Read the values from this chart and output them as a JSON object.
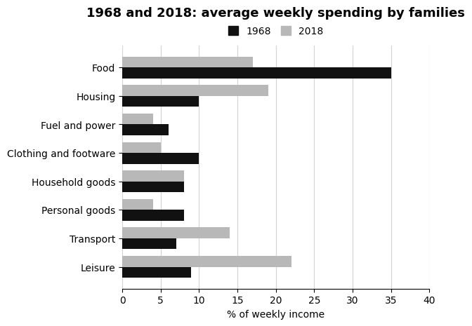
{
  "title": "1968 and 2018: average weekly spending by families",
  "categories": [
    "Food",
    "Housing",
    "Fuel and power",
    "Clothing and footware",
    "Household goods",
    "Personal goods",
    "Transport",
    "Leisure"
  ],
  "values_1968": [
    35,
    10,
    6,
    10,
    8,
    8,
    7,
    9
  ],
  "values_2018": [
    17,
    19,
    4,
    5,
    8,
    4,
    14,
    22
  ],
  "color_1968": "#111111",
  "color_2018": "#b8b8b8",
  "xlabel": "% of weekly income",
  "xlim": [
    0,
    40
  ],
  "xticks": [
    0,
    5,
    10,
    15,
    20,
    25,
    30,
    35,
    40
  ],
  "legend_labels": [
    "1968",
    "2018"
  ],
  "bar_height": 0.38,
  "title_fontsize": 13,
  "label_fontsize": 10,
  "tick_fontsize": 10
}
